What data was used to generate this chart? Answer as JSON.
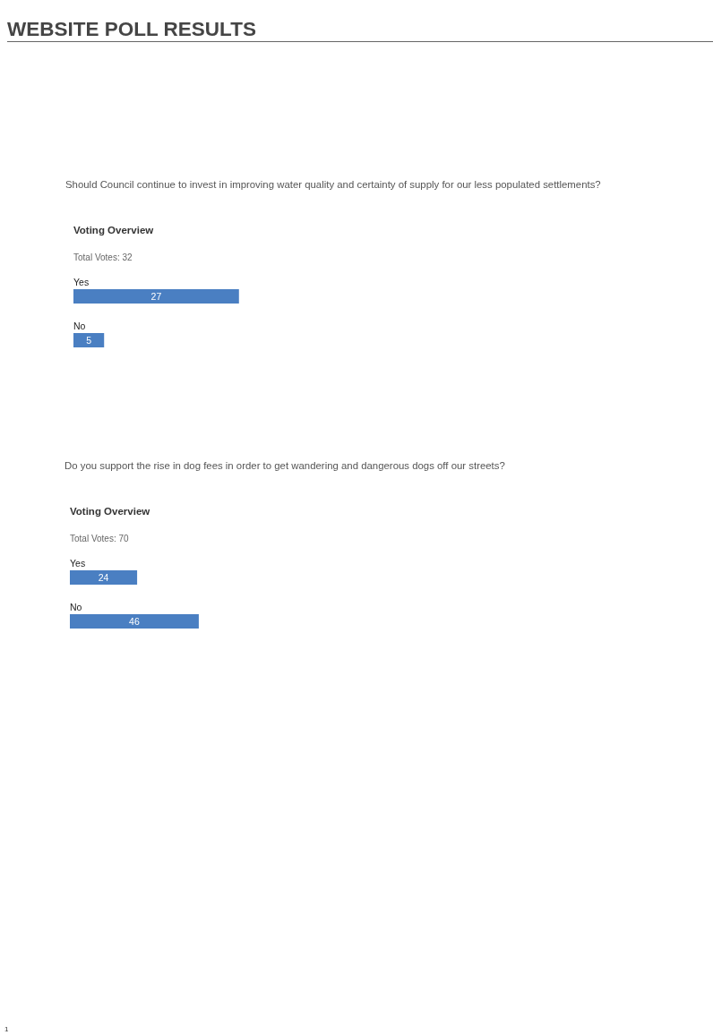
{
  "chart_data": [
    {
      "type": "bar",
      "orientation": "horizontal",
      "title": "Voting Overview",
      "subtitle": "Total Votes: 32",
      "categories": [
        "Yes",
        "No"
      ],
      "values": [
        27,
        5
      ],
      "color": "#4a7fc2",
      "data_labels": true,
      "annotations": [
        "WEBSITE POLL RESULTS",
        "Should Council continue to invest in improving water quality and certainty of supply for our less populated settlements?"
      ]
    },
    {
      "type": "bar",
      "orientation": "horizontal",
      "title": "Voting Overview",
      "subtitle": "Total Votes: 70",
      "categories": [
        "Yes",
        "No"
      ],
      "values": [
        24,
        46
      ],
      "color": "#4a7fc2",
      "data_labels": true,
      "annotations": [
        "Do you support the rise in dog fees in order to get wandering and dangerous dogs off our streets?",
        "1"
      ]
    }
  ]
}
